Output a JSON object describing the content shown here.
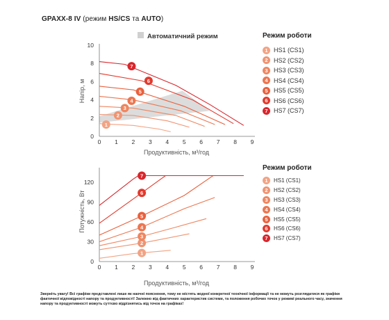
{
  "title": {
    "prefix": "GPA",
    "model": "XX-8 IV",
    "middle": "(режим ",
    "hs": "HS/CS",
    "ta": "та",
    "auto": "AUTO",
    "suffix": ")"
  },
  "legend_title": "Режим роботи",
  "auto_label": "Автоматичний режим",
  "modes": [
    {
      "num": "1",
      "label": "HS1 (CS1)",
      "color": "#f2a383"
    },
    {
      "num": "2",
      "label": "HS2 (CS2)",
      "color": "#ef9472"
    },
    {
      "num": "3",
      "label": "HS3 (CS3)",
      "color": "#ee8660"
    },
    {
      "num": "4",
      "label": "HS4 (CS4)",
      "color": "#ec7650"
    },
    {
      "num": "5",
      "label": "HS5 (CS5)",
      "color": "#e9603c"
    },
    {
      "num": "6",
      "label": "HS6 (CS6)",
      "color": "#e23a2d"
    },
    {
      "num": "7",
      "label": "HS7 (CS7)",
      "color": "#d8262c"
    }
  ],
  "chart_data": [
    {
      "type": "line",
      "xlabel": "Продуктивність, м³/год",
      "ylabel": "Напір, м",
      "xlim": [
        0,
        9
      ],
      "ylim": [
        0,
        10
      ],
      "xticks": [
        "0",
        "1",
        "2",
        "3",
        "4",
        "5",
        "6",
        "7",
        "8",
        "9"
      ],
      "yticks": [
        "0",
        "2",
        "4",
        "6",
        "8",
        "10"
      ],
      "auto_region": [
        [
          0,
          2.2
        ],
        [
          4.9,
          5
        ],
        [
          6.5,
          2.8
        ],
        [
          3,
          2.1
        ],
        [
          0,
          1.5
        ]
      ],
      "series": [
        {
          "name": "HS1 (CS1)",
          "marker": [
            0.4,
            1.3
          ],
          "points": [
            [
              0,
              1.4
            ],
            [
              2,
              1.2
            ],
            [
              3.5,
              0.8
            ],
            [
              4.2,
              0.5
            ]
          ]
        },
        {
          "name": "HS2 (CS2)",
          "marker": [
            1.1,
            2.3
          ],
          "points": [
            [
              0,
              2.4
            ],
            [
              2,
              2.3
            ],
            [
              4,
              1.7
            ],
            [
              5.3,
              1.0
            ]
          ]
        },
        {
          "name": "HS3 (CS3)",
          "marker": [
            1.5,
            3.1
          ],
          "points": [
            [
              0,
              3.3
            ],
            [
              2,
              3.1
            ],
            [
              4.5,
              2.3
            ],
            [
              6.2,
              1.1
            ]
          ]
        },
        {
          "name": "HS4 (CS4)",
          "marker": [
            1.9,
            3.9
          ],
          "points": [
            [
              0,
              4.4
            ],
            [
              2,
              4.0
            ],
            [
              4.8,
              2.8
            ],
            [
              6.8,
              1.3
            ]
          ]
        },
        {
          "name": "HS5 (CS5)",
          "marker": [
            2.4,
            4.9
          ],
          "points": [
            [
              0,
              5.5
            ],
            [
              2,
              5.1
            ],
            [
              5.0,
              3.3
            ],
            [
              7.4,
              1.3
            ]
          ]
        },
        {
          "name": "HS6 (CS6)",
          "marker": [
            2.9,
            6.1
          ],
          "points": [
            [
              0,
              6.9
            ],
            [
              2.5,
              6.1
            ],
            [
              5.5,
              4.0
            ],
            [
              7.9,
              1.4
            ]
          ]
        },
        {
          "name": "HS7 (CS7)",
          "marker": [
            1.9,
            7.7
          ],
          "points": [
            [
              0,
              8.2
            ],
            [
              1.5,
              7.9
            ],
            [
              4.5,
              5.6
            ],
            [
              6.5,
              3.5
            ],
            [
              8.5,
              1.2
            ]
          ]
        }
      ]
    },
    {
      "type": "line",
      "xlabel": "Продуктивність, м³/год",
      "ylabel": "Потужність, Вт",
      "xlim": [
        0,
        9
      ],
      "ylim": [
        0,
        140
      ],
      "xticks": [
        "0",
        "1",
        "2",
        "3",
        "4",
        "5",
        "6",
        "7",
        "8",
        "9"
      ],
      "yticks": [
        "0",
        "30",
        "60",
        "90",
        "120"
      ],
      "series": [
        {
          "name": "HS1 (CS1)",
          "marker": [
            2.5,
            13
          ],
          "points": [
            [
              0,
              5
            ],
            [
              2,
              12
            ],
            [
              4.2,
              17
            ]
          ]
        },
        {
          "name": "HS2 (CS2)",
          "marker": [
            2.5,
            28
          ],
          "points": [
            [
              0,
              18
            ],
            [
              2.5,
              28
            ],
            [
              5.3,
              42
            ]
          ]
        },
        {
          "name": "HS3 (CS3)",
          "marker": [
            2.5,
            38
          ],
          "points": [
            [
              0,
              24
            ],
            [
              2.5,
              38
            ],
            [
              4.5,
              52
            ],
            [
              6.3,
              65
            ]
          ]
        },
        {
          "name": "HS4 (CS4)",
          "marker": [
            2.5,
            52
          ],
          "points": [
            [
              0,
              30
            ],
            [
              2.5,
              52
            ],
            [
              5,
              80
            ],
            [
              6.8,
              97
            ]
          ]
        },
        {
          "name": "HS5 (CS5)",
          "marker": [
            2.5,
            69
          ],
          "points": [
            [
              0,
              40
            ],
            [
              2.5,
              69
            ],
            [
              5,
              100
            ],
            [
              6.7,
              130
            ],
            [
              7.5,
              130
            ]
          ]
        },
        {
          "name": "HS6 (CS6)",
          "marker": [
            2.5,
            104
          ],
          "points": [
            [
              0,
              58
            ],
            [
              2.5,
              104
            ],
            [
              3.9,
              130
            ],
            [
              8.5,
              130
            ]
          ]
        },
        {
          "name": "HS7 (CS7)",
          "marker": [
            2.5,
            130
          ],
          "points": [
            [
              0,
              85
            ],
            [
              2,
              125
            ],
            [
              2.3,
              130
            ],
            [
              8.5,
              130
            ]
          ]
        }
      ]
    }
  ],
  "note": "Зверніть увагу! Всі графіки представлені лише як наочні пояснення, тому не містять жодної конкретної технічної інформації та не можуть розглядатися як графіки фактичної відповідності напору та продуктивності! Залежно від фактичних характеристик системи, та положення робочих точок у режимі реального часу, значення напору та продуктивності можуть суттєво відрізнятись від точок на графіках!"
}
